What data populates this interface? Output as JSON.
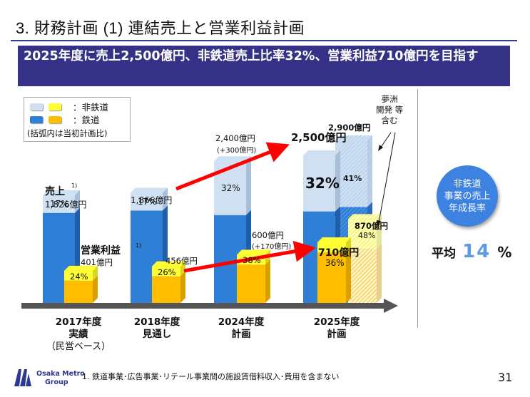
{
  "page": {
    "title": "3. 財務計画 (1) 連結売上と営業利益計画",
    "headline": "2025年度に売上2,500億円、非鉄道売上比率32%、営業利益710億円を目指す",
    "page_number": "31",
    "footnote": "1.  鉄道事業･広告事業･リテール事業間の施設賃借料収入･費用を含まない",
    "logo": {
      "line1": "Osaka Metro",
      "line2": "Group"
    }
  },
  "legend": {
    "non_rail": "：非鉄道",
    "rail": "：鉄道",
    "note": "(括弧内は当初計画比)"
  },
  "colors": {
    "rail_sales": "#2f7fd6",
    "non_rail_sales": "#cfe0f3",
    "rail_op": "#ffbf00",
    "non_rail_op": "#ffff33",
    "arrow": "#ff0000",
    "axis": "#555555",
    "headline_bg": "#353187",
    "circle": "#3d82e0"
  },
  "annotations": {
    "sales_label": "売上",
    "sales_footnote_mark": "1)",
    "op_label": "営業利益",
    "op_footnote_mark": "1)",
    "yumeshima": "夢洲\n開発 等\n含む"
  },
  "growth": {
    "circle_lines": [
      "非鉄道",
      "事業の売上",
      "年成長率"
    ],
    "avg_label": "平均",
    "avg_value": "14",
    "avg_unit": "%"
  },
  "chart_data": {
    "type": "bar",
    "title": "連結売上と営業利益計画",
    "xlabel": "",
    "ylabel": "億円",
    "categories": [
      {
        "year": "2017年度",
        "sub": "実績",
        "note": "（民営ベース）"
      },
      {
        "year": "2018年度",
        "sub": "見通し",
        "note": ""
      },
      {
        "year": "2024年度",
        "sub": "計画",
        "note": ""
      },
      {
        "year": "2025年度",
        "sub": "計画",
        "note": ""
      }
    ],
    "sales": [
      {
        "total": 1826,
        "label": "1,826億円",
        "delta": "",
        "non_rail_pct": 17,
        "pct_label": "17%"
      },
      {
        "total": 1866,
        "label": "1,866億円",
        "delta": "",
        "non_rail_pct": 17,
        "pct_label": "17%"
      },
      {
        "total": 2400,
        "label": "2,400億円",
        "delta": "(+300億円)",
        "non_rail_pct": 32,
        "pct_label": "32%"
      },
      {
        "total": 2500,
        "label": "2,500億円",
        "delta": "",
        "non_rail_pct": 32,
        "pct_label": "32%"
      }
    ],
    "operating_profit": [
      {
        "total": 401,
        "label": "401億円",
        "delta": "",
        "non_rail_pct": 24,
        "pct_label": "24%"
      },
      {
        "total": 456,
        "label": "456億円",
        "delta": "",
        "non_rail_pct": 26,
        "pct_label": "26%"
      },
      {
        "total": 600,
        "label": "600億円",
        "delta": "(+170億円)",
        "non_rail_pct": 38,
        "pct_label": "38%"
      },
      {
        "total": 710,
        "label": "710億円",
        "delta": "",
        "non_rail_pct": 36,
        "pct_label": "36%"
      }
    ],
    "yumeshima_case": {
      "sales": {
        "total": 2900,
        "label": "2,900億円",
        "non_rail_pct": 41,
        "pct_label": "41%"
      },
      "operating_profit": {
        "total": 870,
        "label": "870億円",
        "non_rail_pct": 48,
        "pct_label": "48%"
      }
    },
    "series": [
      {
        "name": "売上 鉄道",
        "color": "#2f7fd6"
      },
      {
        "name": "売上 非鉄道",
        "color": "#cfe0f3"
      },
      {
        "name": "営業利益 鉄道",
        "color": "#ffbf00"
      },
      {
        "name": "営業利益 非鉄道",
        "color": "#ffff33"
      }
    ],
    "legend_position": "top-left",
    "grid": false
  }
}
